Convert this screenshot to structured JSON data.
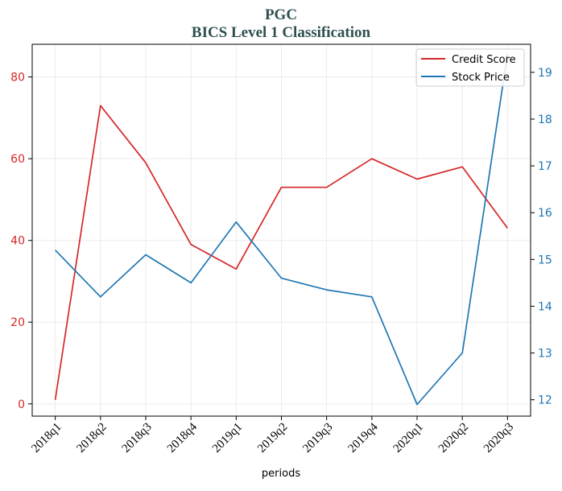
{
  "chart_data": {
    "type": "line",
    "title": "PGC",
    "subtitle": "BICS Level 1 Classification",
    "xlabel": "periods",
    "categories": [
      "2018q1",
      "2018q2",
      "2018q3",
      "2018q4",
      "2019q1",
      "2019q2",
      "2019q3",
      "2019q4",
      "2020q1",
      "2020q2",
      "2020q3"
    ],
    "series": [
      {
        "name": "Credit Score",
        "axis": "left",
        "color": "#d62728",
        "values": [
          1,
          73,
          59,
          39,
          33,
          53,
          53,
          60,
          55,
          58,
          43
        ]
      },
      {
        "name": "Stock Price",
        "axis": "right",
        "color": "#1f77b4",
        "values": [
          15.2,
          14.2,
          15.1,
          14.5,
          15.8,
          14.6,
          14.35,
          14.2,
          11.9,
          13.0,
          19.4
        ]
      }
    ],
    "y_left": {
      "lim": [
        -3,
        88
      ],
      "ticks": [
        0,
        20,
        40,
        60,
        80
      ],
      "tick_labels": [
        "0",
        "20",
        "40",
        "60",
        "80"
      ],
      "color": "#d62728"
    },
    "y_right": {
      "lim": [
        11.65,
        19.6
      ],
      "ticks": [
        12,
        13,
        14,
        15,
        16,
        17,
        18,
        19
      ],
      "tick_labels": [
        "12",
        "13",
        "14",
        "15",
        "16",
        "17",
        "18",
        "19"
      ],
      "color": "#1f77b4"
    },
    "grid": true,
    "legend_position": "top-right"
  }
}
